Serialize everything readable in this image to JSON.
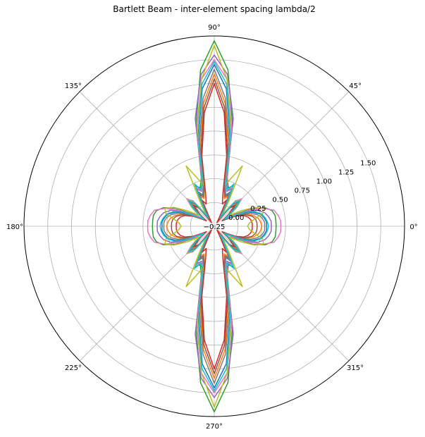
{
  "chart_data": {
    "type": "line",
    "projection": "polar",
    "title": "Bartlett Beam - inter-element spacing lambda/2",
    "angle_ticks_deg": [
      0,
      45,
      90,
      135,
      180,
      225,
      270,
      315
    ],
    "angle_tick_labels": [
      "0°",
      "45°",
      "90°",
      "135°",
      "180°",
      "225°",
      "270°",
      "315°"
    ],
    "radial_ticks": [
      -0.25,
      0.0,
      0.25,
      0.5,
      0.75,
      1.0,
      1.25,
      1.5
    ],
    "radial_tick_labels": [
      "−0.25",
      "0.00",
      "0.25",
      "0.50",
      "0.75",
      "1.00",
      "1.25",
      "1.50"
    ],
    "rlim": [
      -0.25,
      1.75
    ],
    "grid": true,
    "angle_step_deg": 5,
    "angles_deg": [
      0,
      5,
      10,
      15,
      20,
      25,
      30,
      35,
      40,
      45,
      50,
      55,
      60,
      65,
      70,
      75,
      80,
      85,
      90
    ],
    "series": [
      {
        "color": "#1f77b4",
        "r": [
          0.3,
          0.3,
          0.28,
          0.25,
          0.18,
          0.08,
          -0.08,
          -0.12,
          0.02,
          0.12,
          0.06,
          -0.15,
          -0.05,
          0.15,
          0.1,
          0.2,
          0.7,
          1.2,
          1.45
        ]
      },
      {
        "color": "#ff7f0e",
        "r": [
          0.25,
          0.24,
          0.22,
          0.18,
          0.12,
          0.02,
          -0.05,
          -0.1,
          -0.02,
          0.08,
          0.04,
          -0.18,
          -0.1,
          0.1,
          0.06,
          0.15,
          0.6,
          1.05,
          1.35
        ]
      },
      {
        "color": "#2ca02c",
        "r": [
          0.4,
          0.4,
          0.4,
          0.38,
          0.32,
          0.2,
          0.0,
          -0.12,
          0.05,
          0.15,
          0.1,
          -0.1,
          0.02,
          0.22,
          0.18,
          0.28,
          0.85,
          1.4,
          1.7
        ]
      },
      {
        "color": "#d62728",
        "r": [
          0.15,
          0.15,
          0.14,
          0.12,
          0.08,
          0.0,
          -0.1,
          -0.15,
          -0.05,
          0.05,
          0.0,
          -0.2,
          -0.15,
          0.05,
          0.0,
          0.1,
          0.5,
          0.95,
          1.25
        ]
      },
      {
        "color": "#9467bd",
        "r": [
          0.35,
          0.35,
          0.33,
          0.3,
          0.24,
          0.12,
          -0.05,
          -0.12,
          0.04,
          0.14,
          0.08,
          -0.12,
          0.0,
          0.18,
          0.14,
          0.25,
          0.9,
          1.35,
          1.55
        ]
      },
      {
        "color": "#8c564b",
        "r": [
          0.2,
          0.2,
          0.19,
          0.16,
          0.1,
          0.02,
          -0.08,
          -0.14,
          -0.03,
          0.06,
          0.02,
          -0.16,
          -0.08,
          0.12,
          0.08,
          0.16,
          0.55,
          1.0,
          1.3
        ]
      },
      {
        "color": "#e377c2",
        "r": [
          0.45,
          0.45,
          0.43,
          0.4,
          0.3,
          0.15,
          -0.02,
          -0.1,
          0.06,
          0.16,
          0.09,
          -0.12,
          0.0,
          0.2,
          0.15,
          0.26,
          0.8,
          1.3,
          1.5
        ]
      },
      {
        "color": "#7f7f7f",
        "r": [
          0.28,
          0.28,
          0.26,
          0.22,
          0.15,
          0.05,
          -0.08,
          -0.12,
          0.0,
          0.1,
          0.05,
          -0.15,
          -0.06,
          0.14,
          0.09,
          0.18,
          0.65,
          1.1,
          1.4
        ]
      },
      {
        "color": "#bcbd22",
        "r": [
          0.1,
          0.12,
          0.18,
          0.28,
          0.3,
          0.22,
          0.08,
          -0.05,
          0.05,
          0.14,
          0.08,
          -0.1,
          0.05,
          0.45,
          0.3,
          0.2,
          0.75,
          1.3,
          1.65
        ]
      },
      {
        "color": "#17becf",
        "r": [
          0.32,
          0.31,
          0.29,
          0.26,
          0.2,
          0.1,
          -0.06,
          -0.12,
          0.03,
          0.13,
          0.07,
          -0.14,
          -0.03,
          0.24,
          0.16,
          0.22,
          0.72,
          1.25,
          1.48
        ]
      }
    ]
  }
}
